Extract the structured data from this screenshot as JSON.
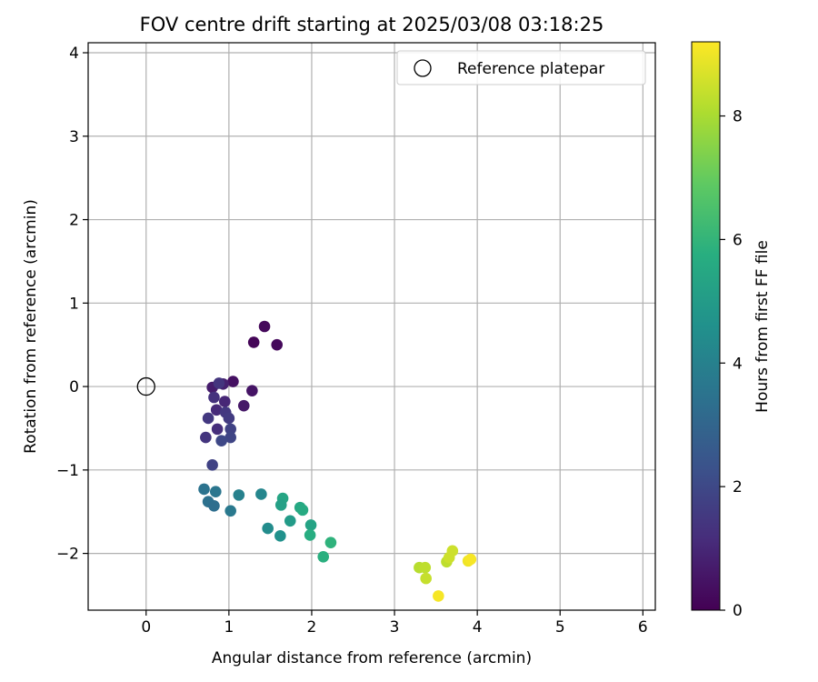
{
  "chart_data": {
    "type": "scatter",
    "title": "FOV centre drift starting at 2025/03/08 03:18:25",
    "xlabel": "Angular distance from reference (arcmin)",
    "ylabel": "Rotation from reference (arcmin)",
    "xlim": [
      -0.7,
      6.15
    ],
    "ylim": [
      -2.68,
      4.12
    ],
    "xticks": [
      0,
      1,
      2,
      3,
      4,
      5,
      6
    ],
    "yticks": [
      -2,
      -1,
      0,
      1,
      2,
      3,
      4
    ],
    "grid": true,
    "legend": {
      "position": "top-right",
      "entries": [
        "Reference platepar"
      ]
    },
    "reference_point": {
      "x": 0,
      "y": 0,
      "label": "Reference platepar"
    },
    "colorbar": {
      "label": "Hours from first FF file",
      "range": [
        0,
        9.2
      ],
      "ticks": [
        0,
        2,
        4,
        6,
        8
      ],
      "colormap": "viridis"
    },
    "points": [
      {
        "x": 1.43,
        "y": 0.72,
        "hours": 0.2
      },
      {
        "x": 1.3,
        "y": 0.53,
        "hours": 0.1
      },
      {
        "x": 1.58,
        "y": 0.5,
        "hours": 0.2
      },
      {
        "x": 1.05,
        "y": 0.06,
        "hours": 0.4
      },
      {
        "x": 1.28,
        "y": -0.05,
        "hours": 0.5
      },
      {
        "x": 1.18,
        "y": -0.23,
        "hours": 0.6
      },
      {
        "x": 0.8,
        "y": -0.01,
        "hours": 0.7
      },
      {
        "x": 0.93,
        "y": 0.03,
        "hours": 0.8
      },
      {
        "x": 0.95,
        "y": -0.18,
        "hours": 1.0
      },
      {
        "x": 0.85,
        "y": -0.28,
        "hours": 1.1
      },
      {
        "x": 0.88,
        "y": 0.04,
        "hours": 1.4
      },
      {
        "x": 0.82,
        "y": -0.13,
        "hours": 1.3
      },
      {
        "x": 0.96,
        "y": -0.31,
        "hours": 1.5
      },
      {
        "x": 1.0,
        "y": -0.38,
        "hours": 1.6
      },
      {
        "x": 0.75,
        "y": -0.38,
        "hours": 1.5
      },
      {
        "x": 1.02,
        "y": -0.51,
        "hours": 1.8
      },
      {
        "x": 0.86,
        "y": -0.51,
        "hours": 1.2
      },
      {
        "x": 1.02,
        "y": -0.61,
        "hours": 1.9
      },
      {
        "x": 0.72,
        "y": -0.61,
        "hours": 1.4
      },
      {
        "x": 0.91,
        "y": -0.65,
        "hours": 2.0
      },
      {
        "x": 0.8,
        "y": -0.94,
        "hours": 1.8
      },
      {
        "x": 0.7,
        "y": -1.23,
        "hours": 3.5
      },
      {
        "x": 0.84,
        "y": -1.26,
        "hours": 3.6
      },
      {
        "x": 0.75,
        "y": -1.38,
        "hours": 3.4
      },
      {
        "x": 0.82,
        "y": -1.43,
        "hours": 3.3
      },
      {
        "x": 1.12,
        "y": -1.3,
        "hours": 4.0
      },
      {
        "x": 1.02,
        "y": -1.49,
        "hours": 3.7
      },
      {
        "x": 1.39,
        "y": -1.29,
        "hours": 4.2
      },
      {
        "x": 1.47,
        "y": -1.7,
        "hours": 4.4
      },
      {
        "x": 1.62,
        "y": -1.79,
        "hours": 4.6
      },
      {
        "x": 1.65,
        "y": -1.34,
        "hours": 5.4
      },
      {
        "x": 1.63,
        "y": -1.42,
        "hours": 5.2
      },
      {
        "x": 1.74,
        "y": -1.61,
        "hours": 5.0
      },
      {
        "x": 1.86,
        "y": -1.45,
        "hours": 5.5
      },
      {
        "x": 1.89,
        "y": -1.48,
        "hours": 5.6
      },
      {
        "x": 1.99,
        "y": -1.66,
        "hours": 5.3
      },
      {
        "x": 1.98,
        "y": -1.78,
        "hours": 5.7
      },
      {
        "x": 2.23,
        "y": -1.87,
        "hours": 5.9
      },
      {
        "x": 2.14,
        "y": -2.04,
        "hours": 5.8
      },
      {
        "x": 3.3,
        "y": -2.17,
        "hours": 8.2
      },
      {
        "x": 3.37,
        "y": -2.17,
        "hours": 8.3
      },
      {
        "x": 3.38,
        "y": -2.3,
        "hours": 8.4
      },
      {
        "x": 3.53,
        "y": -2.51,
        "hours": 9.1
      },
      {
        "x": 3.63,
        "y": -2.1,
        "hours": 8.3
      },
      {
        "x": 3.66,
        "y": -2.05,
        "hours": 8.5
      },
      {
        "x": 3.7,
        "y": -1.97,
        "hours": 8.5
      },
      {
        "x": 3.89,
        "y": -2.09,
        "hours": 9.0
      },
      {
        "x": 3.92,
        "y": -2.07,
        "hours": 9.1
      }
    ]
  }
}
